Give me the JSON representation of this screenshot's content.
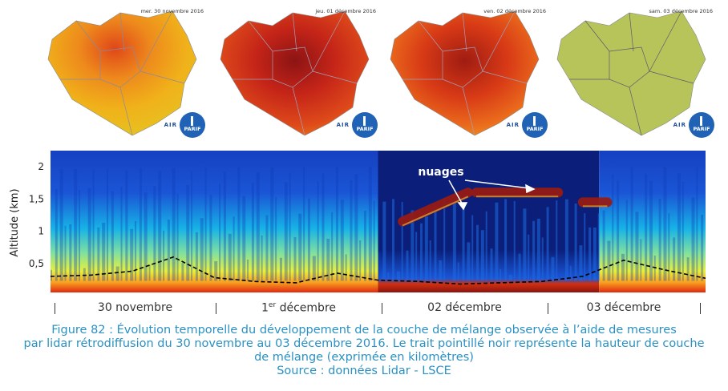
{
  "maps": [
    {
      "date": "mer. 30 novembre 2016",
      "palette": "yellow-orange"
    },
    {
      "date": "jeu. 01 décembre 2016",
      "palette": "red"
    },
    {
      "date": "ven. 02 décembre 2016",
      "palette": "red-orange"
    },
    {
      "date": "sam. 03 décembre 2016",
      "palette": "olive-green"
    }
  ],
  "logo": {
    "word": "AIR",
    "badge": "PARIF"
  },
  "chart_data": {
    "type": "heatmap",
    "ylabel": "Altitude (km)",
    "yticks": [
      "0,5",
      "1",
      "1,5",
      "2"
    ],
    "ytick_values": [
      0.5,
      1,
      1.5,
      2
    ],
    "ylim": [
      0.05,
      2.25
    ],
    "xlim_days": [
      0,
      4
    ],
    "day_labels": [
      {
        "label": "30 novembre",
        "sup": ""
      },
      {
        "label": "1",
        "sup": "er",
        "suffix": " décembre"
      },
      {
        "label": "02 décembre",
        "sup": ""
      },
      {
        "label": "03 décembre",
        "sup": ""
      }
    ],
    "annotation": "nuages",
    "mixing_height_series": {
      "x": [
        0,
        0.25,
        0.5,
        0.75,
        1,
        1.25,
        1.5,
        1.75,
        2,
        2.25,
        2.5,
        2.75,
        3,
        3.25,
        3.5,
        3.75,
        4
      ],
      "y": [
        0.3,
        0.32,
        0.38,
        0.6,
        0.28,
        0.22,
        0.2,
        0.35,
        0.24,
        0.22,
        0.18,
        0.2,
        0.22,
        0.3,
        0.55,
        0.4,
        0.27
      ]
    },
    "cloud_layers": [
      {
        "x_start": 2.15,
        "x_end": 2.55,
        "y_start": 1.15,
        "y_end": 1.6
      },
      {
        "x_start": 2.6,
        "x_end": 3.1,
        "y_start": 1.6,
        "y_end": 1.6
      },
      {
        "x_start": 3.25,
        "x_end": 3.4,
        "y_start": 1.45,
        "y_end": 1.45
      }
    ],
    "colorscale": [
      "#0b1f7a",
      "#1a56d6",
      "#17b3e6",
      "#7fe0a0",
      "#e8f03a",
      "#f8a020",
      "#e02810",
      "#8b1410"
    ]
  },
  "caption": {
    "line1": "Figure 82 : Évolution temporelle du développement de la couche de mélange observée à l’aide de mesures",
    "line2": "par lidar rétrodiffusion du 30 novembre au 03 décembre 2016. Le trait pointillé noir représente la hauteur de couche",
    "line3": "de mélange (exprimée en kilomètres)",
    "line4": "Source : données Lidar - LSCE"
  }
}
